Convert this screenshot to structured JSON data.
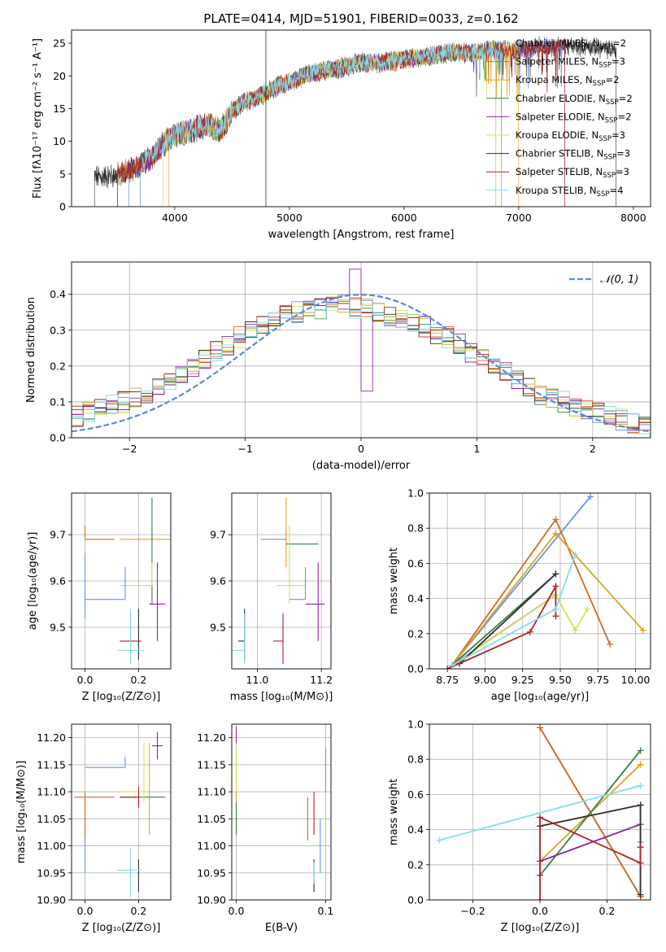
{
  "colors": [
    "#6495ed",
    "#d2691e",
    "#daa520",
    "#3a7d44",
    "#8e24aa",
    "#d4e157",
    "#2f2f2f",
    "#b22222",
    "#80deea"
  ],
  "chart_data": [
    {
      "id": "spectrum",
      "type": "line",
      "title": "PLATE=0414, MJD=51901, FIBERID=0033, z=0.162",
      "xlabel": "wavelength [Angstrom, rest frame]",
      "ylabel": "Flux [fλ10⁻¹⁷ erg cm⁻² s⁻¹ A⁻¹]",
      "xlim": [
        3100,
        8150
      ],
      "ylim": [
        0,
        27
      ],
      "xticks": [
        4000,
        5000,
        6000,
        7000,
        8000
      ],
      "yticks": [
        0,
        5,
        10,
        15,
        20,
        25
      ],
      "grid": false,
      "legend_loc": "upper right",
      "legend": [
        {
          "label": "Chabrier MILES, N",
          "sub": "SSP",
          "suffix": "=2"
        },
        {
          "label": "Salpeter MILES, N",
          "sub": "SSP",
          "suffix": "=3"
        },
        {
          "label": "Kroupa MILES, N",
          "sub": "SSP",
          "suffix": "=2"
        },
        {
          "label": "Chabrier ELODIE, N",
          "sub": "SSP",
          "suffix": "=2"
        },
        {
          "label": "Salpeter ELODIE, N",
          "sub": "SSP",
          "suffix": "=2"
        },
        {
          "label": "Kroupa ELODIE, N",
          "sub": "SSP",
          "suffix": "=3"
        },
        {
          "label": "Chabrier STELIB, N",
          "sub": "SSP",
          "suffix": "=3"
        },
        {
          "label": "Salpeter STELIB, N",
          "sub": "SSP",
          "suffix": "=3"
        },
        {
          "label": "Kroupa STELIB, N",
          "sub": "SSP",
          "suffix": "=4"
        }
      ],
      "data_envelope": {
        "x": [
          3300,
          3400,
          3500,
          3600,
          3700,
          3800,
          3900,
          4000,
          4100,
          4200,
          4300,
          4400,
          4500,
          4600,
          4700,
          4800,
          4900,
          5000,
          5200,
          5400,
          5600,
          5800,
          6000,
          6200,
          6400,
          6600,
          6800,
          7000,
          7200,
          7400,
          7600,
          7800
        ],
        "y": [
          4.5,
          4.6,
          4.8,
          5.5,
          6.5,
          7.5,
          9.5,
          11.0,
          11.5,
          12.0,
          12.5,
          11.5,
          14.5,
          16.0,
          16.5,
          17.5,
          18.5,
          19.0,
          20.5,
          21.0,
          22.0,
          22.0,
          22.5,
          23.0,
          23.5,
          23.5,
          24.0,
          24.0,
          24.5,
          24.5,
          24.5,
          24.0
        ]
      },
      "model_ranges": [
        [
          3600,
          7400
        ],
        [
          3500,
          6800
        ],
        [
          3950,
          7000
        ],
        [
          3700,
          6850
        ],
        [
          3700,
          6850
        ],
        [
          3900,
          6800
        ],
        [
          3300,
          7850
        ],
        [
          3500,
          7400
        ],
        [
          3700,
          6850
        ]
      ]
    },
    {
      "id": "residuals",
      "type": "step",
      "xlabel": "(data-model)/error",
      "ylabel": "Normed distribution",
      "xlim": [
        -2.5,
        2.5
      ],
      "ylim": [
        0,
        0.49
      ],
      "xticks": [
        -2,
        -1,
        0,
        1,
        2
      ],
      "yticks": [
        0.0,
        0.1,
        0.2,
        0.3,
        0.4
      ],
      "grid": true,
      "legend": [
        "𝒩(0, 1)"
      ],
      "bins": [
        -2.5,
        2.5,
        50
      ],
      "hist_base": [
        0.06,
        0.07,
        0.08,
        0.09,
        0.1,
        0.11,
        0.12,
        0.14,
        0.16,
        0.18,
        0.2,
        0.22,
        0.24,
        0.26,
        0.28,
        0.3,
        0.31,
        0.33,
        0.34,
        0.35,
        0.36,
        0.36,
        0.37,
        0.37,
        0.36,
        0.36,
        0.35,
        0.34,
        0.33,
        0.32,
        0.31,
        0.29,
        0.28,
        0.26,
        0.24,
        0.22,
        0.2,
        0.18,
        0.16,
        0.14,
        0.12,
        0.11,
        0.1,
        0.09,
        0.08,
        0.07,
        0.06,
        0.05,
        0.04,
        0.03
      ]
    },
    {
      "id": "age_vs_Z",
      "type": "errorbar",
      "xlabel": "Z [log₁₀(Z/Z⊙)]",
      "ylabel": "age  [log₁₀(age/yr)]",
      "xlim": [
        -0.05,
        0.32
      ],
      "ylim": [
        9.41,
        9.79
      ],
      "xticks": [
        0.0,
        0.2
      ],
      "xtick_labels": [
        "0.0",
        "0.2"
      ],
      "yticks": [
        9.5,
        9.6,
        9.7
      ],
      "ytick_labels": [
        "9.5",
        "9.6",
        "9.7"
      ],
      "grid": true,
      "points": [
        {
          "x": 0.0,
          "xerr": [
            0.0,
            0.0
          ],
          "y": 9.59,
          "yerr": [
            0.07,
            0.07
          ]
        },
        {
          "x": 0.0,
          "xerr": [
            0.0,
            0.11
          ],
          "y": 9.69,
          "yerr": [
            0.0,
            0.03
          ]
        },
        {
          "x": 0.25,
          "xerr": [
            0.12,
            0.12
          ],
          "y": 9.69,
          "yerr": [
            0.0,
            0.0
          ]
        },
        {
          "x": 0.25,
          "xerr": [
            0.0,
            0.0
          ],
          "y": 9.68,
          "yerr": [
            0.13,
            0.1
          ]
        },
        {
          "x": 0.27,
          "xerr": [
            0.03,
            0.03
          ],
          "y": 9.55,
          "yerr": [
            0.08,
            0.09
          ]
        },
        {
          "x": 0.25,
          "xerr": [
            0.12,
            0.0
          ],
          "y": 9.59,
          "yerr": [
            0.0,
            0.05
          ]
        },
        {
          "x": 0.2,
          "xerr": [
            0.0,
            0.0
          ],
          "y": 9.47,
          "yerr": [
            0.04,
            0.07
          ]
        },
        {
          "x": 0.17,
          "xerr": [
            0.04,
            0.04
          ],
          "y": 9.47,
          "yerr": [
            0.05,
            0.06
          ]
        },
        {
          "x": 0.17,
          "xerr": [
            0.05,
            0.05
          ],
          "y": 9.45,
          "yerr": [
            0.03,
            0.09
          ]
        },
        {
          "x": 0.15,
          "xerr": [
            0.15,
            0.0
          ],
          "y": 9.56,
          "yerr": [
            0.0,
            0.07
          ]
        }
      ]
    },
    {
      "id": "age_vs_mass",
      "type": "errorbar",
      "xlabel": "mass [log₁₀(M/M⊙)]",
      "ylabel": "",
      "xlim": [
        10.92,
        11.23
      ],
      "ylim": [
        9.41,
        9.79
      ],
      "xticks": [
        11.0,
        11.2
      ],
      "xtick_labels": [
        "11.0",
        "11.2"
      ],
      "yticks": [
        9.5,
        9.6,
        9.7
      ],
      "ytick_labels": [
        "9.5",
        "9.6",
        "9.7"
      ],
      "grid": true,
      "points": [
        {
          "x": 11.09,
          "xerr": [
            0.08,
            0.0
          ],
          "y": 9.69,
          "yerr": [
            0.0,
            0.0
          ]
        },
        {
          "x": 11.09,
          "xerr": [
            0.0,
            0.0
          ],
          "y": 9.69,
          "yerr": [
            0.0,
            0.02
          ]
        },
        {
          "x": 11.09,
          "xerr": [
            0.0,
            0.0
          ],
          "y": 9.68,
          "yerr": [
            0.05,
            0.1
          ]
        },
        {
          "x": 11.09,
          "xerr": [
            0.0,
            0.1
          ],
          "y": 9.68,
          "yerr": [
            0.0,
            0.0
          ]
        },
        {
          "x": 11.19,
          "xerr": [
            0.04,
            0.02
          ],
          "y": 9.55,
          "yerr": [
            0.08,
            0.09
          ]
        },
        {
          "x": 11.1,
          "xerr": [
            0.04,
            0.05
          ],
          "y": 9.59,
          "yerr": [
            0.04,
            0.13
          ]
        },
        {
          "x": 10.96,
          "xerr": [
            0.02,
            0.0
          ],
          "y": 9.47,
          "yerr": [
            0.04,
            0.07
          ]
        },
        {
          "x": 11.08,
          "xerr": [
            0.03,
            0.0
          ],
          "y": 9.47,
          "yerr": [
            0.05,
            0.06
          ]
        },
        {
          "x": 10.96,
          "xerr": [
            0.04,
            0.0
          ],
          "y": 9.45,
          "yerr": [
            0.03,
            0.08
          ]
        },
        {
          "x": 11.15,
          "xerr": [
            0.05,
            0.0
          ],
          "y": 9.56,
          "yerr": [
            0.0,
            0.07
          ]
        }
      ]
    },
    {
      "id": "mass_weight_vs_age",
      "type": "line",
      "xlabel": "age  [log₁₀(age/yr)]",
      "ylabel": "mass weight",
      "xlim": [
        8.63,
        10.1
      ],
      "ylim": [
        0.0,
        1.0
      ],
      "xticks": [
        8.75,
        9.0,
        9.25,
        9.5,
        9.75,
        10.0
      ],
      "xtick_labels": [
        "8.75",
        "9.00",
        "9.25",
        "9.50",
        "9.75",
        "10.00"
      ],
      "yticks": [
        0.0,
        0.2,
        0.4,
        0.6,
        0.8,
        1.0
      ],
      "ytick_labels": [
        "0.0",
        "0.2",
        "0.4",
        "0.6",
        "0.8",
        "1.0"
      ],
      "grid": true,
      "series": [
        {
          "x": [
            8.78,
            9.7
          ],
          "y": [
            0.02,
            0.98
          ]
        },
        {
          "x": [
            8.78,
            9.47,
            9.83
          ],
          "y": [
            0.02,
            0.85,
            0.14
          ]
        },
        {
          "x": [
            8.78,
            9.47,
            10.05
          ],
          "y": [
            0.02,
            0.77,
            0.22
          ]
        },
        {
          "x": [
            8.78,
            9.47
          ],
          "y": [
            0.02,
            0.54
          ]
        },
        {
          "x": [
            8.78,
            9.47
          ],
          "y": [
            0.02,
            0.42
          ]
        },
        {
          "x": [
            8.75,
            9.47,
            9.6,
            9.68
          ],
          "y": [
            0.0,
            0.42,
            0.22,
            0.34
          ]
        },
        {
          "x": [
            8.83,
            9.47
          ],
          "y": [
            0.03,
            0.54
          ]
        },
        {
          "x": [
            8.75,
            9.3,
            9.47,
            9.47
          ],
          "y": [
            0.0,
            0.21,
            0.47,
            0.3
          ]
        },
        {
          "x": [
            8.78,
            9.47,
            9.6
          ],
          "y": [
            0.02,
            0.34,
            0.65
          ]
        }
      ]
    },
    {
      "id": "mass_vs_Z",
      "type": "errorbar",
      "xlabel": "Z [log₁₀(Z/Z⊙)]",
      "ylabel": "mass [log₁₀(M/M⊙)]",
      "xlim": [
        -0.05,
        0.32
      ],
      "ylim": [
        10.9,
        11.225
      ],
      "xticks": [
        0.0,
        0.2
      ],
      "xtick_labels": [
        "0.0",
        "0.2"
      ],
      "yticks": [
        10.9,
        10.95,
        11.0,
        11.05,
        11.1,
        11.15,
        11.2
      ],
      "ytick_labels": [
        "10.90",
        "10.95",
        "11.00",
        "11.05",
        "11.10",
        "11.15",
        "11.20"
      ],
      "grid": true,
      "points": [
        {
          "x": 0.0,
          "xerr": [
            0.0,
            0.0
          ],
          "y": 11.09,
          "yerr": [
            0.14,
            0.0
          ]
        },
        {
          "x": 0.0,
          "xerr": [
            0.04,
            0.11
          ],
          "y": 11.09,
          "yerr": [
            0.08,
            0.01
          ]
        },
        {
          "x": 0.24,
          "xerr": [
            0.0,
            0.0
          ],
          "y": 11.09,
          "yerr": [
            0.07,
            0.1
          ]
        },
        {
          "x": 0.25,
          "xerr": [
            0.12,
            0.05
          ],
          "y": 11.09,
          "yerr": [
            0.0,
            0.0
          ]
        },
        {
          "x": 0.27,
          "xerr": [
            0.02,
            0.02
          ],
          "y": 11.185,
          "yerr": [
            0.025,
            0.025
          ]
        },
        {
          "x": 0.22,
          "xerr": [
            0.1,
            0.0
          ],
          "y": 11.1,
          "yerr": [
            0.02,
            0.09
          ]
        },
        {
          "x": 0.2,
          "xerr": [
            0.0,
            0.0
          ],
          "y": 10.955,
          "yerr": [
            0.04,
            0.02
          ]
        },
        {
          "x": 0.2,
          "xerr": [
            0.07,
            0.0
          ],
          "y": 11.09,
          "yerr": [
            0.02,
            0.02
          ]
        },
        {
          "x": 0.17,
          "xerr": [
            0.05,
            0.04
          ],
          "y": 10.955,
          "yerr": [
            0.05,
            0.04
          ]
        },
        {
          "x": 0.15,
          "xerr": [
            0.15,
            0.0
          ],
          "y": 11.145,
          "yerr": [
            0.0,
            0.02
          ]
        }
      ]
    },
    {
      "id": "mass_vs_ebv",
      "type": "errorbar",
      "xlabel": "E(B-V)",
      "ylabel": "",
      "xlim": [
        -0.005,
        0.106
      ],
      "ylim": [
        10.9,
        11.225
      ],
      "xticks": [
        0.0,
        0.1
      ],
      "xtick_labels": [
        "0.0",
        "0.1"
      ],
      "yticks": [
        10.9,
        10.95,
        11.0,
        11.05,
        11.1,
        11.15,
        11.2
      ],
      "ytick_labels": [
        "10.90",
        "10.95",
        "11.00",
        "11.05",
        "11.10",
        "11.15",
        "11.20"
      ],
      "grid": true,
      "points": [
        {
          "x": 0.094,
          "xerr": [
            0.0,
            0.0
          ],
          "y": 10.99,
          "yerr": [
            0.04,
            0.06
          ]
        },
        {
          "x": 0.08,
          "xerr": [
            0.0,
            0.0
          ],
          "y": 11.05,
          "yerr": [
            0.04,
            0.04
          ]
        },
        {
          "x": 0.0,
          "xerr": [
            0.0,
            0.0
          ],
          "y": 11.12,
          "yerr": [
            0.04,
            0.06
          ]
        },
        {
          "x": 0.0,
          "xerr": [
            0.0,
            0.0
          ],
          "y": 11.05,
          "yerr": [
            0.03,
            0.03
          ]
        },
        {
          "x": 0.0,
          "xerr": [
            0.0,
            0.0
          ],
          "y": 11.205,
          "yerr": [
            0.015,
            0.015
          ]
        },
        {
          "x": 0.0,
          "xerr": [
            0.0,
            0.0
          ],
          "y": 11.14,
          "yerr": [
            0.04,
            0.04
          ]
        },
        {
          "x": 0.087,
          "xerr": [
            0.0,
            0.0
          ],
          "y": 10.955,
          "yerr": [
            0.04,
            0.02
          ]
        },
        {
          "x": 0.087,
          "xerr": [
            0.0,
            0.0
          ],
          "y": 11.06,
          "yerr": [
            0.04,
            0.04
          ]
        },
        {
          "x": 0.087,
          "xerr": [
            0.0,
            0.0
          ],
          "y": 10.95,
          "yerr": [
            0.02,
            0.02
          ]
        },
        {
          "x": 0.1,
          "xerr": [
            0.0,
            0.0
          ],
          "y": 11.14,
          "yerr": [
            0.04,
            0.04
          ]
        }
      ]
    },
    {
      "id": "mass_weight_vs_Z",
      "type": "line",
      "xlabel": "Z [log₁₀(Z/Z⊙)]",
      "ylabel": "mass weight",
      "xlim": [
        -0.33,
        0.33
      ],
      "ylim": [
        0.0,
        1.0
      ],
      "xticks": [
        -0.2,
        0.0,
        0.2
      ],
      "xtick_labels": [
        "−0.2",
        "0.0",
        "0.2"
      ],
      "yticks": [
        0.0,
        0.2,
        0.4,
        0.6,
        0.8,
        1.0
      ],
      "ytick_labels": [
        "0.0",
        "0.2",
        "0.4",
        "0.6",
        "0.8",
        "1.0"
      ],
      "grid": true,
      "series": [
        {
          "x": [
            0.0,
            0.3,
            0.3
          ],
          "y": [
            0.98,
            0.02,
            0.33
          ]
        },
        {
          "x": [
            0.0,
            0.3,
            0.3
          ],
          "y": [
            0.98,
            0.02,
            0.54
          ]
        },
        {
          "x": [
            0.0,
            0.3
          ],
          "y": [
            0.22,
            0.77
          ]
        },
        {
          "x": [
            0.0,
            0.0,
            0.3
          ],
          "y": [
            0.14,
            0.14,
            0.85
          ]
        },
        {
          "x": [
            0.0,
            0.3
          ],
          "y": [
            0.22,
            0.43
          ]
        },
        {
          "x": [
            0.0,
            0.3
          ],
          "y": [
            0.42,
            0.54
          ]
        },
        {
          "x": [
            0.0,
            0.3,
            0.3
          ],
          "y": [
            0.42,
            0.54,
            0.03
          ]
        },
        {
          "x": [
            0.0,
            0.0,
            0.3,
            0.3
          ],
          "y": [
            0.0,
            0.47,
            0.21,
            0.3
          ]
        },
        {
          "x": [
            -0.3,
            0.3
          ],
          "y": [
            0.34,
            0.65
          ]
        }
      ]
    }
  ]
}
